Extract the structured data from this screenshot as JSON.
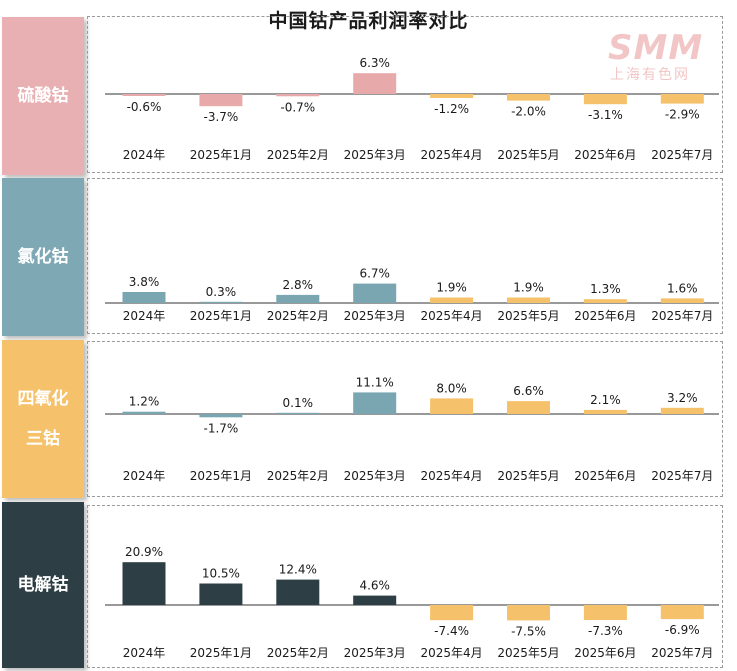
{
  "title": "中国钴产品利润率对比",
  "logo": {
    "main": "SMM",
    "sub": "上海有色网"
  },
  "colors": {
    "pink": "#e8a9ab",
    "teal": "#7aa6b2",
    "gold": "#f5c26b",
    "dark": "#2d3e45",
    "axis": "#333333",
    "text": "#1a1a1a"
  },
  "chart_data": [
    {
      "type": "bar",
      "title": "硫酸钴",
      "categories": [
        "2024年",
        "2025年1月",
        "2025年2月",
        "2025年3月",
        "2025年4月",
        "2025年5月",
        "2025年6月",
        "2025年7月"
      ],
      "values": [
        -0.6,
        -3.7,
        -0.7,
        6.3,
        -1.2,
        -2.0,
        -3.1,
        -2.9
      ],
      "labels": [
        "-0.6%",
        "-3.7%",
        "-0.7%",
        "6.3%",
        "-1.2%",
        "-2.0%",
        "-3.1%",
        "-2.9%"
      ],
      "colors": [
        "#e8a9ab",
        "#e8a9ab",
        "#e8a9ab",
        "#e8a9ab",
        "#f5c26b",
        "#f5c26b",
        "#f5c26b",
        "#f5c26b"
      ],
      "ylabel": ""
    },
    {
      "type": "bar",
      "title": "氯化钴",
      "categories": [
        "2024年",
        "2025年1月",
        "2025年2月",
        "2025年3月",
        "2025年4月",
        "2025年5月",
        "2025年6月",
        "2025年7月"
      ],
      "values": [
        3.8,
        0.3,
        2.8,
        6.7,
        1.9,
        1.9,
        1.3,
        1.6
      ],
      "labels": [
        "3.8%",
        "0.3%",
        "2.8%",
        "6.7%",
        "1.9%",
        "1.9%",
        "1.3%",
        "1.6%"
      ],
      "colors": [
        "#7aa6b2",
        "#7aa6b2",
        "#7aa6b2",
        "#7aa6b2",
        "#f5c26b",
        "#f5c26b",
        "#f5c26b",
        "#f5c26b"
      ],
      "ylabel": ""
    },
    {
      "type": "bar",
      "title": "四氧化三钴",
      "categories": [
        "2024年",
        "2025年1月",
        "2025年2月",
        "2025年3月",
        "2025年4月",
        "2025年5月",
        "2025年6月",
        "2025年7月"
      ],
      "values": [
        1.2,
        -1.7,
        0.1,
        11.1,
        8.0,
        6.6,
        2.1,
        3.2
      ],
      "labels": [
        "1.2%",
        "-1.7%",
        "0.1%",
        "11.1%",
        "8.0%",
        "6.6%",
        "2.1%",
        "3.2%"
      ],
      "colors": [
        "#7aa6b2",
        "#7aa6b2",
        "#7aa6b2",
        "#7aa6b2",
        "#f5c26b",
        "#f5c26b",
        "#f5c26b",
        "#f5c26b"
      ],
      "ylabel": ""
    },
    {
      "type": "bar",
      "title": "电解钴",
      "categories": [
        "2024年",
        "2025年1月",
        "2025年2月",
        "2025年3月",
        "2025年4月",
        "2025年5月",
        "2025年6月",
        "2025年7月"
      ],
      "values": [
        20.9,
        10.5,
        12.4,
        4.6,
        -7.4,
        -7.5,
        -7.3,
        -6.9
      ],
      "labels": [
        "20.9%",
        "10.5%",
        "12.4%",
        "4.6%",
        "-7.4%",
        "-7.5%",
        "-7.3%",
        "-6.9%"
      ],
      "colors": [
        "#2d3e45",
        "#2d3e45",
        "#2d3e45",
        "#2d3e45",
        "#f5c26b",
        "#f5c26b",
        "#f5c26b",
        "#f5c26b"
      ],
      "ylabel": ""
    }
  ],
  "panels": [
    {
      "label_lines": [
        "硫酸钴"
      ],
      "bg": "#e8b0b2",
      "fg": "#ffffff"
    },
    {
      "label_lines": [
        "氯化钴"
      ],
      "bg": "#7ea9b4",
      "fg": "#ffffff"
    },
    {
      "label_lines": [
        "四氧化",
        "三钴"
      ],
      "bg": "#f5c26b",
      "fg": "#ffffff"
    },
    {
      "label_lines": [
        "电解钴"
      ],
      "bg": "#2d3e45",
      "fg": "#ffffff"
    }
  ]
}
